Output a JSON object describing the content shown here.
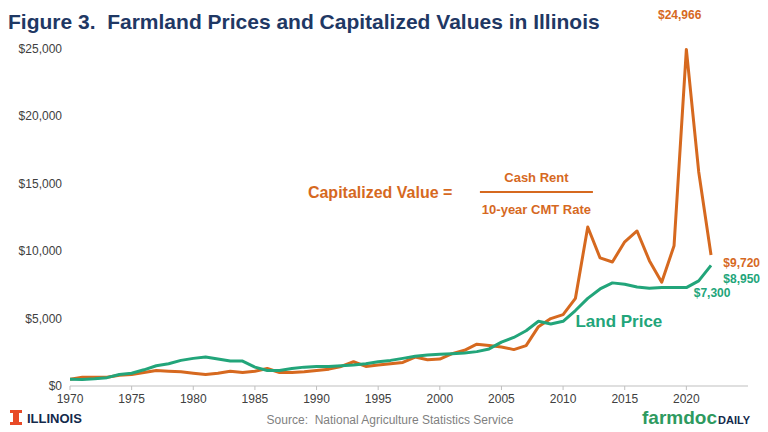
{
  "chart_data": {
    "type": "line",
    "title": "Figure 3.  Farmland Prices and Capitalized Values in Illinois",
    "source": "Source:  National Agriculture Statistics Service",
    "x": [
      1970,
      1971,
      1972,
      1973,
      1974,
      1975,
      1976,
      1977,
      1978,
      1979,
      1980,
      1981,
      1982,
      1983,
      1984,
      1985,
      1986,
      1987,
      1988,
      1989,
      1990,
      1991,
      1992,
      1993,
      1994,
      1995,
      1996,
      1997,
      1998,
      1999,
      2000,
      2001,
      2002,
      2003,
      2004,
      2005,
      2006,
      2007,
      2008,
      2009,
      2010,
      2011,
      2012,
      2013,
      2014,
      2015,
      2016,
      2017,
      2018,
      2019,
      2020,
      2021,
      2022
    ],
    "series": [
      {
        "color": "#D6691F",
        "line_style": "solid",
        "values": [
          500,
          650,
          650,
          650,
          800,
          850,
          1000,
          1150,
          1100,
          1050,
          950,
          850,
          950,
          1100,
          1000,
          1100,
          1300,
          1000,
          1000,
          1050,
          1150,
          1250,
          1450,
          1800,
          1450,
          1550,
          1650,
          1750,
          2150,
          1950,
          2000,
          2400,
          2650,
          3100,
          3000,
          2900,
          2700,
          3000,
          4400,
          5000,
          5300,
          6500,
          11800,
          9500,
          9200,
          10700,
          11500,
          9300,
          7700,
          10400,
          24966,
          15900,
          9720
        ]
      },
      {
        "color": "#22A57A",
        "line_style": "solid",
        "values": [
          500,
          490,
          530,
          620,
          850,
          950,
          1200,
          1500,
          1650,
          1900,
          2050,
          2150,
          2000,
          1850,
          1850,
          1400,
          1150,
          1150,
          1300,
          1400,
          1450,
          1450,
          1500,
          1550,
          1650,
          1800,
          1900,
          2050,
          2200,
          2300,
          2350,
          2400,
          2450,
          2550,
          2750,
          3250,
          3600,
          4100,
          4800,
          4600,
          4800,
          5600,
          6500,
          7200,
          7650,
          7550,
          7350,
          7250,
          7300,
          7300,
          7300,
          7800,
          8950
        ]
      }
    ],
    "xlim": [
      1970,
      2025
    ],
    "xticks": [
      1970,
      1975,
      1980,
      1985,
      1990,
      1995,
      2000,
      2005,
      2010,
      2015,
      2020
    ],
    "ylim": [
      0,
      25000
    ],
    "yticks": [
      {
        "value": 0,
        "label": "$0"
      },
      {
        "value": 5000,
        "label": "$5,000"
      },
      {
        "value": 10000,
        "label": "$10,000"
      },
      {
        "value": 15000,
        "label": "$15,000"
      },
      {
        "value": 20000,
        "label": "$20,000"
      },
      {
        "value": 25000,
        "label": "$25,000"
      }
    ],
    "grid": false,
    "annotations": [
      {
        "text": "$24,966",
        "x": 2017.7,
        "y": 27600,
        "color": "#D6691F"
      },
      {
        "text": "$9,720",
        "x": 2023.0,
        "y": 9200,
        "color": "#D6691F"
      },
      {
        "text": "$8,950",
        "x": 2023.0,
        "y": 8010,
        "color": "#22A57A"
      },
      {
        "text": "$7,300",
        "x": 2020.6,
        "y": 6970,
        "color": "#22A57A"
      },
      {
        "text": "Land Price",
        "x": 2011.0,
        "y": 4750,
        "color": "#22A57A"
      }
    ],
    "formula": {
      "label": "Capitalized Value =",
      "numerator": "Cash Rent",
      "denominator": "10-year CMT Rate",
      "x": 1989.3,
      "y": 14390,
      "color": "#D6691F"
    }
  },
  "branding": {
    "university": "ILLINOIS",
    "site": "farmdoc",
    "site_suffix": "DAILY"
  }
}
